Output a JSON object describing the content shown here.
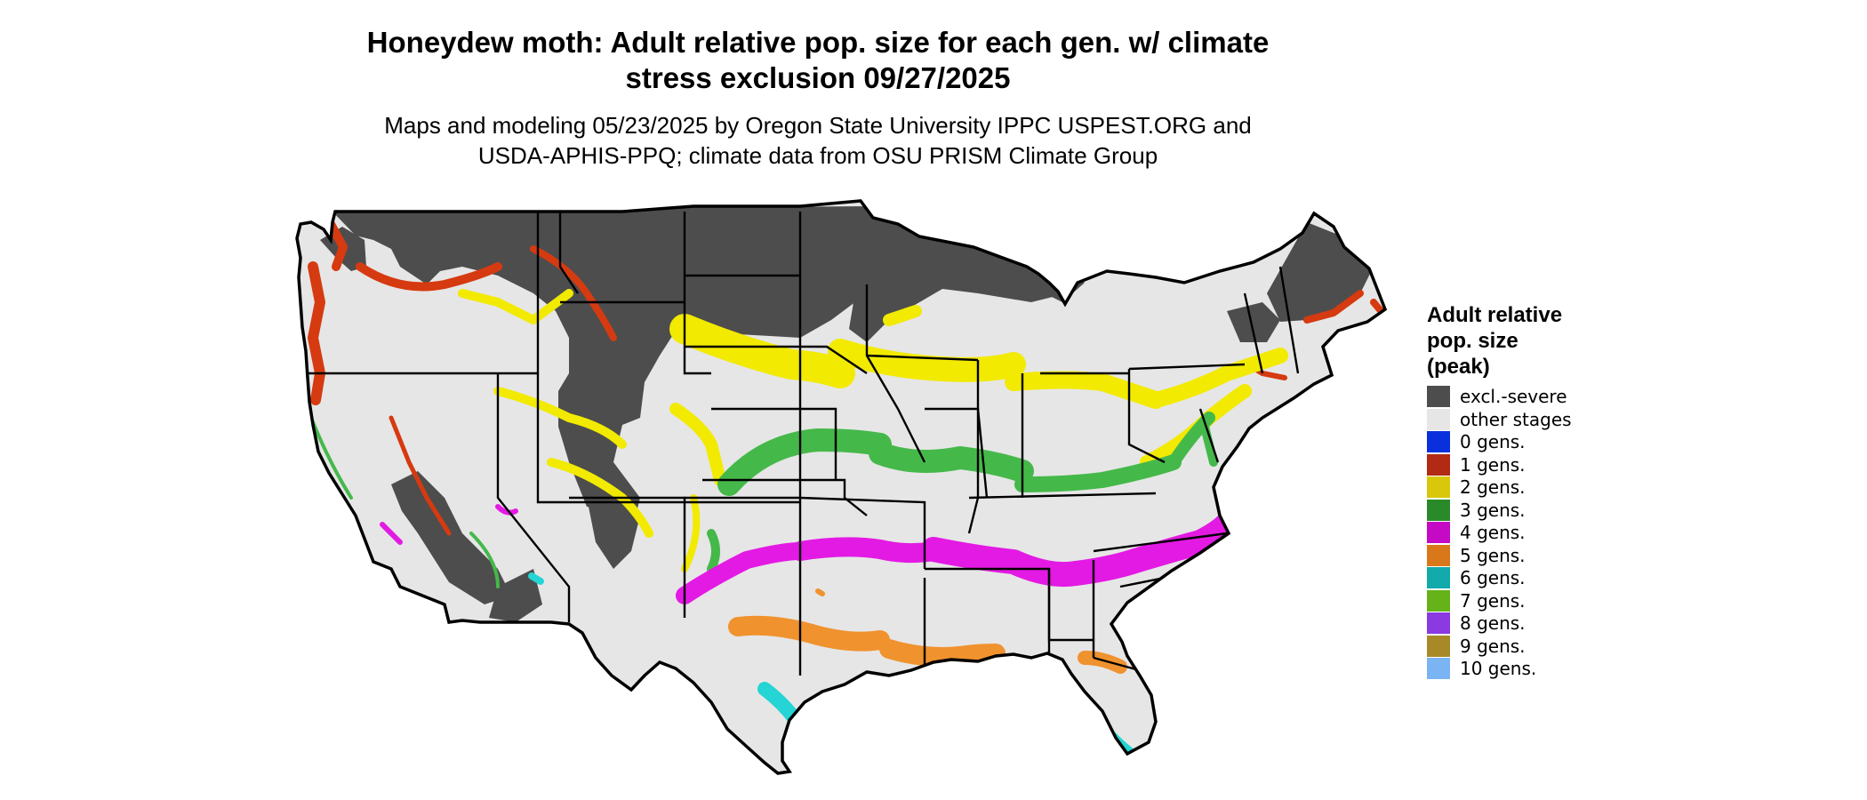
{
  "header": {
    "title_line1": "Honeydew moth: Adult relative pop. size for each gen. w/ climate",
    "title_line2": "stress exclusion 09/27/2025",
    "subtitle_line1": "Maps and modeling 05/23/2025 by Oregon State University IPPC USPEST.ORG and",
    "subtitle_line2": "USDA-APHIS-PPQ; climate data from OSU PRISM Climate Group"
  },
  "legend": {
    "title_line1": "Adult relative",
    "title_line2": "pop. size",
    "title_line3": "(peak)",
    "items": [
      {
        "label": "excl.-severe",
        "color": "#4d4d4d"
      },
      {
        "label": "other stages",
        "color": "#e6e6e6"
      },
      {
        "label": "0 gens.",
        "color": "#0a2fdc"
      },
      {
        "label": "1 gens.",
        "color": "#b22a14"
      },
      {
        "label": "2 gens.",
        "color": "#d8c70a"
      },
      {
        "label": "3 gens.",
        "color": "#2a8a2a"
      },
      {
        "label": "4 gens.",
        "color": "#c40ac4"
      },
      {
        "label": "5 gens.",
        "color": "#d8781a"
      },
      {
        "label": "6 gens.",
        "color": "#12aaaa"
      },
      {
        "label": "7 gens.",
        "color": "#66b319"
      },
      {
        "label": "8 gens.",
        "color": "#8a3ae0"
      },
      {
        "label": "9 gens.",
        "color": "#a78a27"
      },
      {
        "label": "10 gens.",
        "color": "#7ab4f2"
      }
    ]
  },
  "map_colors": {
    "background": "#e6e6e6",
    "excluded": "#4d4d4d",
    "gen1": "#d63a10",
    "gen2": "#f2ea00",
    "gen3": "#45b84a",
    "gen4": "#e31ae3",
    "gen5": "#f0922e",
    "gen6": "#25d4d4",
    "gen7": "#7cd420",
    "gen0": "#2a7ae0",
    "border": "#000000"
  }
}
